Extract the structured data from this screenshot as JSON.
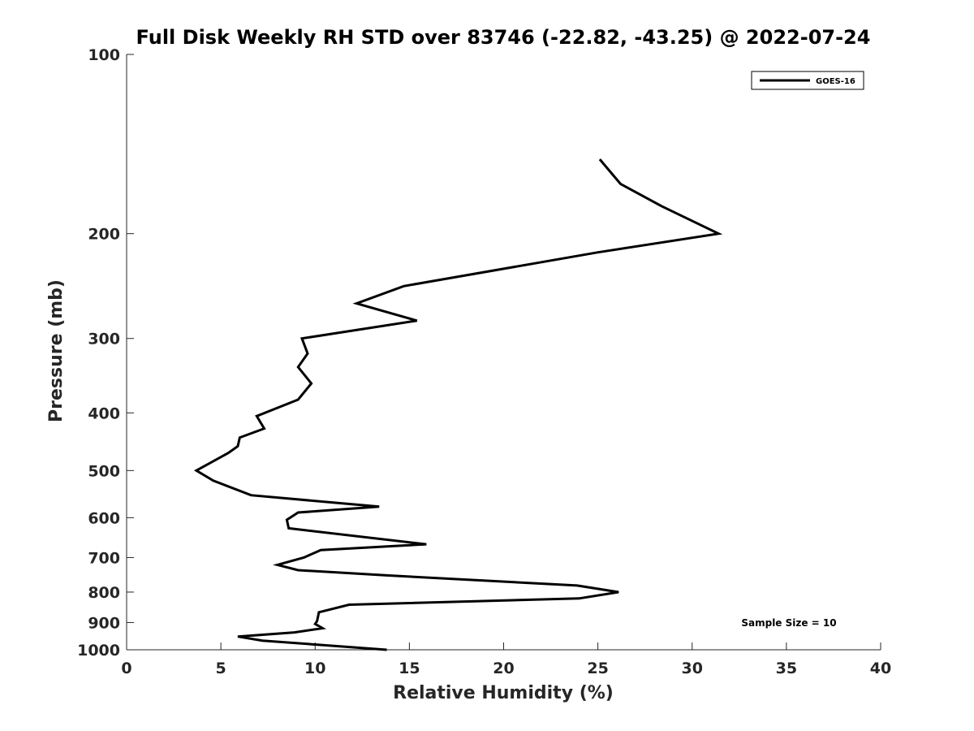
{
  "chart_data": {
    "type": "line",
    "title": "Full Disk Weekly RH STD over 83746 (-22.82, -43.25) @ 2022-07-24",
    "xlabel": "Relative Humidity (%)",
    "ylabel": "Pressure (mb)",
    "xlim": [
      0,
      40
    ],
    "ylim": [
      100,
      1000
    ],
    "y_scale": "log",
    "y_reversed": true,
    "x_ticks": [
      "0",
      "5",
      "10",
      "15",
      "20",
      "25",
      "30",
      "35",
      "40"
    ],
    "y_ticks": [
      "100",
      "200",
      "300",
      "400",
      "500",
      "600",
      "700",
      "800",
      "900",
      "1000"
    ],
    "grid": false,
    "legend_position": "top-right",
    "annotation": "Sample Size = 10",
    "series": [
      {
        "name": "GOES-16",
        "color": "#000000",
        "points": [
          [
            25.1,
            150
          ],
          [
            26.2,
            165
          ],
          [
            28.4,
            180
          ],
          [
            31.4,
            200
          ],
          [
            25.0,
            215
          ],
          [
            14.7,
            245
          ],
          [
            12.2,
            262
          ],
          [
            15.4,
            280
          ],
          [
            9.3,
            300
          ],
          [
            9.6,
            318
          ],
          [
            9.1,
            335
          ],
          [
            9.8,
            357
          ],
          [
            9.1,
            380
          ],
          [
            6.9,
            405
          ],
          [
            7.3,
            425
          ],
          [
            6.0,
            440
          ],
          [
            5.9,
            455
          ],
          [
            5.4,
            467
          ],
          [
            3.7,
            500
          ],
          [
            4.6,
            520
          ],
          [
            6.6,
            550
          ],
          [
            13.4,
            575
          ],
          [
            9.1,
            588
          ],
          [
            8.5,
            605
          ],
          [
            8.6,
            625
          ],
          [
            15.9,
            665
          ],
          [
            10.3,
            680
          ],
          [
            9.4,
            700
          ],
          [
            8.0,
            720
          ],
          [
            9.1,
            735
          ],
          [
            13.8,
            750
          ],
          [
            23.9,
            780
          ],
          [
            26.1,
            800
          ],
          [
            24.0,
            820
          ],
          [
            11.8,
            840
          ],
          [
            10.2,
            865
          ],
          [
            10.1,
            895
          ],
          [
            10.0,
            905
          ],
          [
            10.4,
            920
          ],
          [
            8.9,
            935
          ],
          [
            5.9,
            950
          ],
          [
            7.2,
            965
          ],
          [
            13.8,
            1000
          ]
        ]
      }
    ]
  }
}
